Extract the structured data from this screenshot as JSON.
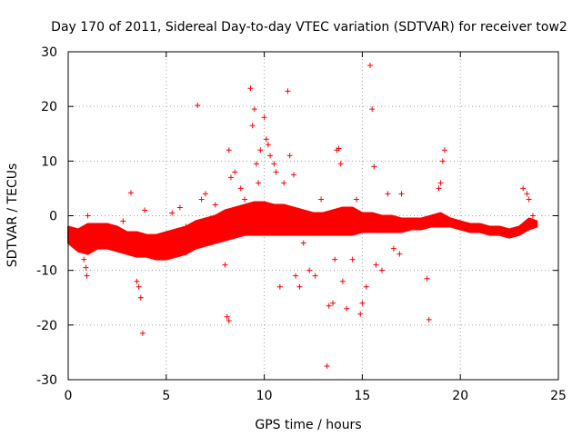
{
  "chart_data": {
    "type": "scatter",
    "title": "Day 170 of 2011, Sidereal Day-to-day VTEC variation (SDTVAR) for receiver tow2",
    "xlabel": "GPS time / hours",
    "ylabel": "SDTVAR / TECUs",
    "xlim": [
      0,
      25
    ],
    "ylim": [
      -30,
      30
    ],
    "x_ticks": [
      0,
      5,
      10,
      15,
      20,
      25
    ],
    "y_ticks": [
      -30,
      -20,
      -10,
      0,
      10,
      20,
      30
    ],
    "x_tick_labels": [
      "0",
      "5",
      "10",
      "15",
      "20",
      "25"
    ],
    "y_tick_labels": [
      "-30",
      "-20",
      "-10",
      "0",
      "10",
      "20",
      "30"
    ],
    "grid": true,
    "marker": "+",
    "color": "#ff0000",
    "band_envelope": {
      "description": "approximate upper/lower bounds of the dense point band (hours, TECU)",
      "x": [
        0,
        0.5,
        1,
        1.5,
        2,
        2.5,
        3,
        3.5,
        4,
        4.5,
        5,
        5.5,
        6,
        6.5,
        7,
        7.5,
        8,
        8.5,
        9,
        9.5,
        10,
        10.5,
        11,
        11.5,
        12,
        12.5,
        13,
        13.5,
        14,
        14.5,
        15,
        15.5,
        16,
        16.5,
        17,
        17.5,
        18,
        18.5,
        19,
        19.5,
        20,
        20.5,
        21,
        21.5,
        22,
        22.5,
        23,
        23.5,
        23.9
      ],
      "upper": [
        -2,
        -2.5,
        -1.5,
        -1.5,
        -1.5,
        -2,
        -3,
        -3,
        -3.5,
        -3.5,
        -3,
        -2.5,
        -2,
        -1,
        -0.5,
        0,
        1,
        1.5,
        2,
        2.5,
        2.5,
        2,
        2,
        1.5,
        1,
        0.5,
        0.5,
        1,
        1.5,
        1.5,
        0.5,
        0.5,
        0,
        0,
        -0.5,
        -0.5,
        -0.5,
        0,
        0.5,
        -0.5,
        -1,
        -1.5,
        -1.5,
        -2,
        -2,
        -2.5,
        -2,
        -0.5,
        -1
      ],
      "lower": [
        -5,
        -6.5,
        -7,
        -6,
        -6,
        -6.5,
        -7,
        -7.5,
        -7.5,
        -8,
        -8,
        -7.5,
        -7,
        -6,
        -5.5,
        -5,
        -4.5,
        -4,
        -3.5,
        -3.5,
        -3.5,
        -3.5,
        -3.5,
        -3.5,
        -3.5,
        -3.5,
        -3.5,
        -3.5,
        -3.5,
        -3.5,
        -3,
        -3,
        -3,
        -3,
        -3,
        -2.5,
        -2.5,
        -2,
        -2,
        -2,
        -2.5,
        -3,
        -3,
        -3.5,
        -3.5,
        -4,
        -3.5,
        -2.5,
        -2
      ]
    },
    "points": [
      [
        0.3,
        -3
      ],
      [
        0.6,
        -6
      ],
      [
        0.8,
        -8
      ],
      [
        0.9,
        -9.5
      ],
      [
        0.95,
        -11
      ],
      [
        1.0,
        0
      ],
      [
        1.2,
        -2
      ],
      [
        2.2,
        -4
      ],
      [
        2.5,
        -3
      ],
      [
        2.8,
        -1
      ],
      [
        3.2,
        4.2
      ],
      [
        3.5,
        -12
      ],
      [
        3.6,
        -13
      ],
      [
        3.7,
        -15
      ],
      [
        3.8,
        -21.5
      ],
      [
        3.9,
        1
      ],
      [
        4.1,
        -4
      ],
      [
        5.3,
        0.5
      ],
      [
        5.7,
        1.5
      ],
      [
        6.0,
        -2
      ],
      [
        6.6,
        20.2
      ],
      [
        6.8,
        3
      ],
      [
        7.0,
        4
      ],
      [
        7.5,
        2
      ],
      [
        8.0,
        -9
      ],
      [
        8.1,
        -18.5
      ],
      [
        8.2,
        -19.2
      ],
      [
        8.2,
        12
      ],
      [
        8.3,
        7
      ],
      [
        8.5,
        8
      ],
      [
        8.8,
        5
      ],
      [
        9.0,
        3
      ],
      [
        9.3,
        23.3
      ],
      [
        9.4,
        16.5
      ],
      [
        9.5,
        19.5
      ],
      [
        9.6,
        9.5
      ],
      [
        9.7,
        6
      ],
      [
        9.8,
        12
      ],
      [
        10.0,
        18
      ],
      [
        10.1,
        14
      ],
      [
        10.2,
        13
      ],
      [
        10.3,
        11
      ],
      [
        10.5,
        9.5
      ],
      [
        10.6,
        8
      ],
      [
        10.8,
        -13
      ],
      [
        11.0,
        6
      ],
      [
        11.2,
        22.8
      ],
      [
        11.3,
        11
      ],
      [
        11.5,
        7.5
      ],
      [
        11.6,
        -11
      ],
      [
        11.8,
        -13
      ],
      [
        12.0,
        -5
      ],
      [
        12.3,
        -10
      ],
      [
        12.6,
        -11
      ],
      [
        12.9,
        3
      ],
      [
        13.2,
        -27.5
      ],
      [
        13.3,
        -16.5
      ],
      [
        13.5,
        -16
      ],
      [
        13.6,
        -8
      ],
      [
        13.7,
        12
      ],
      [
        13.8,
        12.3
      ],
      [
        13.9,
        9.5
      ],
      [
        14.0,
        -12
      ],
      [
        14.2,
        -17
      ],
      [
        14.5,
        -8
      ],
      [
        14.7,
        3
      ],
      [
        14.9,
        -18
      ],
      [
        15.0,
        -16
      ],
      [
        15.2,
        -13
      ],
      [
        15.4,
        27.5
      ],
      [
        15.5,
        19.5
      ],
      [
        15.6,
        9
      ],
      [
        15.7,
        -9
      ],
      [
        16.0,
        -10
      ],
      [
        16.3,
        4
      ],
      [
        16.6,
        -6
      ],
      [
        16.9,
        -7
      ],
      [
        17.0,
        4
      ],
      [
        18.3,
        -11.5
      ],
      [
        18.4,
        -19
      ],
      [
        18.9,
        5
      ],
      [
        19.0,
        6
      ],
      [
        19.1,
        10
      ],
      [
        19.2,
        12
      ],
      [
        23.2,
        5
      ],
      [
        23.4,
        4
      ],
      [
        23.5,
        3
      ],
      [
        23.7,
        0
      ]
    ]
  }
}
